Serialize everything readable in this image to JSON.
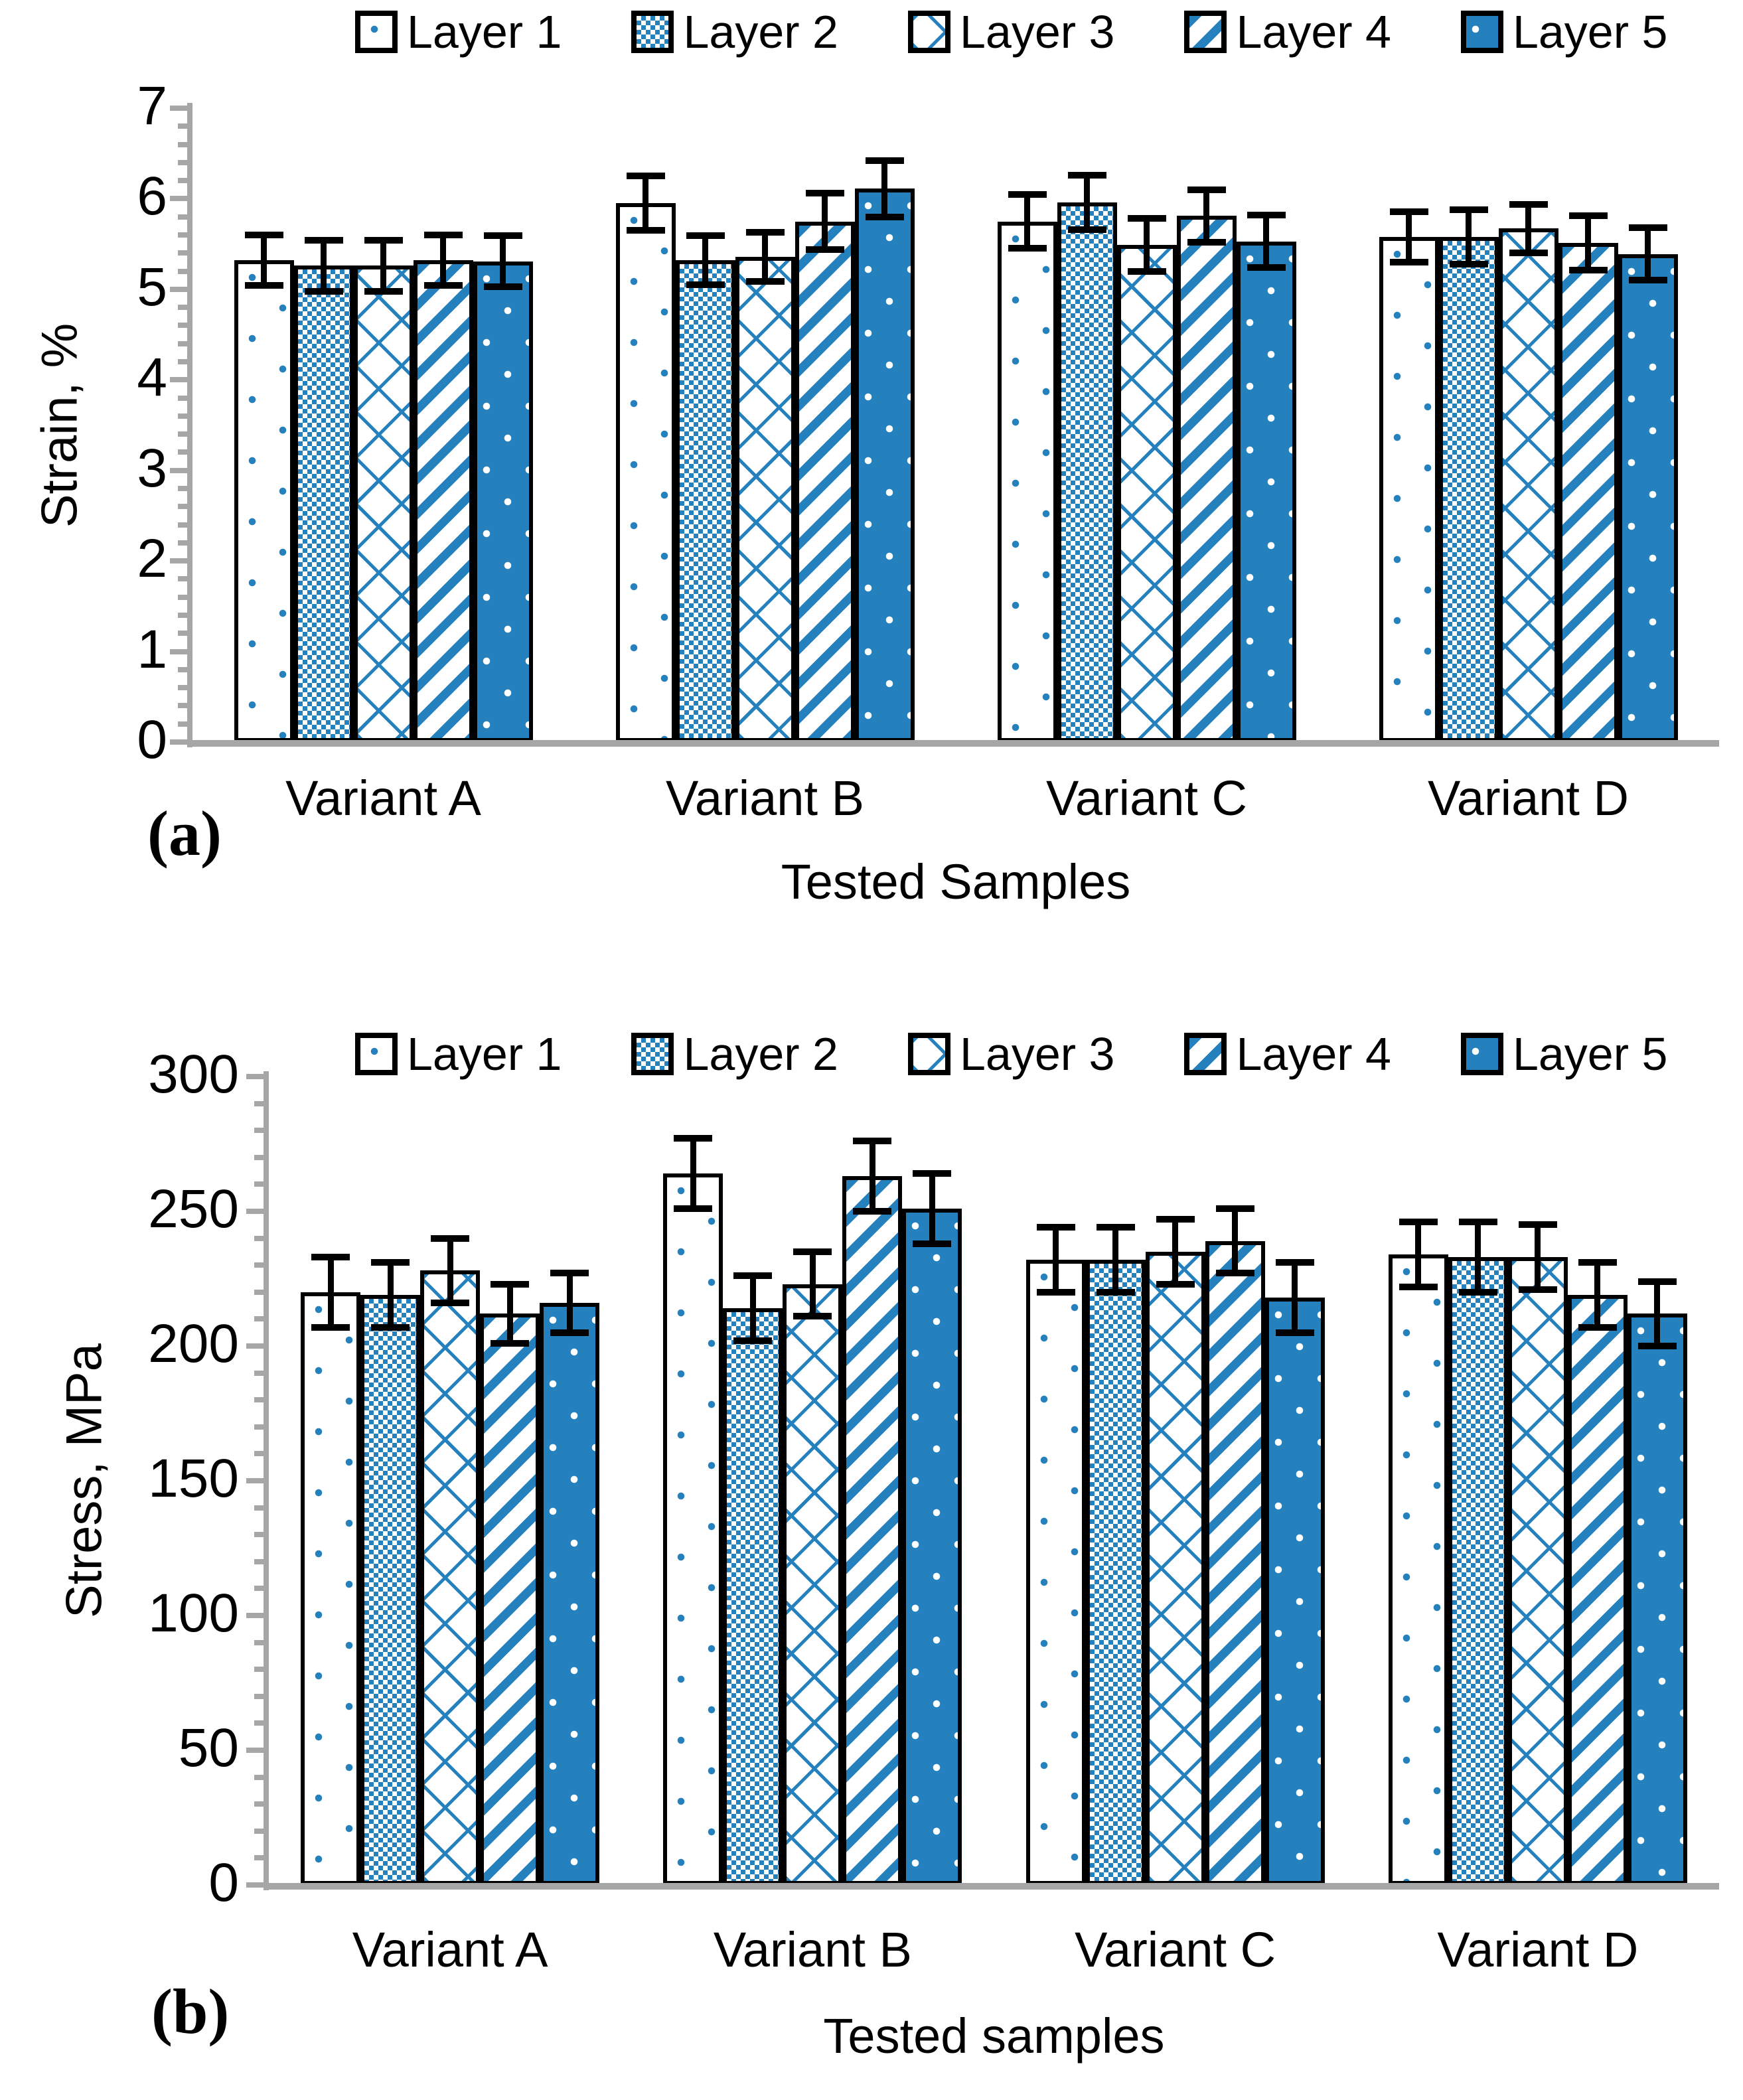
{
  "colors": {
    "bar_blue": "#2581BE",
    "axis_gray": "#A6A6A6",
    "bar_border": "#000000",
    "text": "#000000",
    "background": "#ffffff"
  },
  "chart_data": [
    {
      "type": "bar",
      "panel_label": "(a)",
      "ylabel": "Strain, %",
      "xlabel": "Tested Samples",
      "categories": [
        "Variant A",
        "Variant B",
        "Variant C",
        "Variant D"
      ],
      "series": [
        {
          "name": "Layer 1",
          "values": [
            5.32,
            5.95,
            5.75,
            5.58
          ],
          "errors": [
            0.28,
            0.3,
            0.3,
            0.28
          ]
        },
        {
          "name": "Layer 2",
          "values": [
            5.26,
            5.32,
            5.96,
            5.58
          ],
          "errors": [
            0.28,
            0.27,
            0.3,
            0.3
          ]
        },
        {
          "name": "Layer 3",
          "values": [
            5.26,
            5.36,
            5.49,
            5.67
          ],
          "errors": [
            0.28,
            0.27,
            0.29,
            0.27
          ]
        },
        {
          "name": "Layer 4",
          "values": [
            5.32,
            5.75,
            5.81,
            5.51
          ],
          "errors": [
            0.28,
            0.31,
            0.29,
            0.3
          ]
        },
        {
          "name": "Layer 5",
          "values": [
            5.31,
            6.11,
            5.53,
            5.39
          ],
          "errors": [
            0.28,
            0.31,
            0.29,
            0.29
          ]
        }
      ],
      "ylim": [
        0,
        7
      ],
      "y_major_step": 1,
      "y_minor_step": 0.2,
      "y_tick_labels": [
        "0",
        "1",
        "2",
        "3",
        "4",
        "5",
        "6",
        "7"
      ],
      "legend_position": "top",
      "legend_entries": [
        "Layer 1",
        "Layer 2",
        "Layer 3",
        "Layer 4",
        "Layer 5"
      ],
      "grid": false
    },
    {
      "type": "bar",
      "panel_label": "(b)",
      "ylabel": "Stress, MPa",
      "xlabel": "Tested samples",
      "categories": [
        "Variant A",
        "Variant B",
        "Variant C",
        "Variant D"
      ],
      "series": [
        {
          "name": "Layer 1",
          "values": [
            220,
            264,
            232,
            234
          ],
          "errors": [
            13,
            13,
            12,
            12
          ]
        },
        {
          "name": "Layer 2",
          "values": [
            219,
            214,
            232,
            233
          ],
          "errors": [
            12,
            12,
            12,
            13
          ]
        },
        {
          "name": "Layer 3",
          "values": [
            228,
            223,
            235,
            233
          ],
          "errors": [
            12,
            12,
            12,
            12
          ]
        },
        {
          "name": "Layer 4",
          "values": [
            212,
            263,
            239,
            219
          ],
          "errors": [
            11,
            13,
            12,
            12
          ]
        },
        {
          "name": "Layer 5",
          "values": [
            216,
            251,
            218,
            212
          ],
          "errors": [
            11,
            13,
            13,
            12
          ]
        }
      ],
      "ylim": [
        0,
        300
      ],
      "y_major_step": 50,
      "y_minor_step": 10,
      "y_tick_labels": [
        "0",
        "50",
        "100",
        "150",
        "200",
        "250",
        "300"
      ],
      "legend_position": "top",
      "legend_entries": [
        "Layer 1",
        "Layer 2",
        "Layer 3",
        "Layer 4",
        "Layer 5"
      ],
      "grid": false
    }
  ]
}
